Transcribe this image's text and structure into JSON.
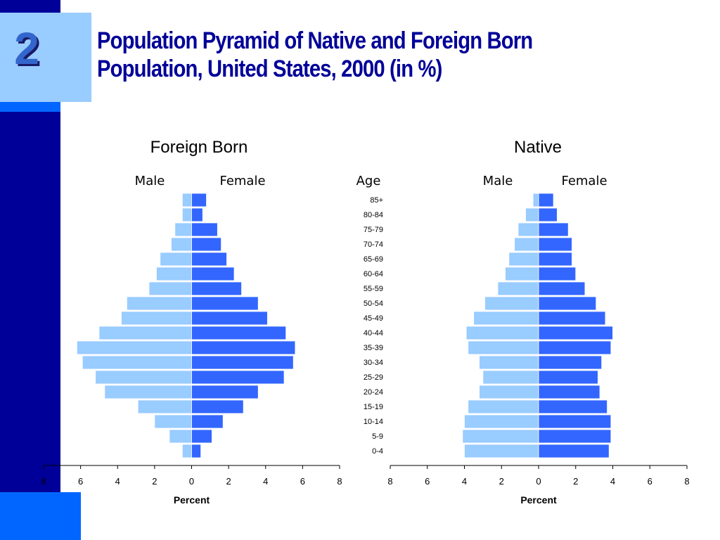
{
  "slide": {
    "number": "2",
    "title_line1": "Population Pyramid of Native and Foreign Born",
    "title_line2": "Population, United States, 2000 (in %)"
  },
  "colors": {
    "sidebar": "#000099",
    "accent": "#0066ff",
    "light_box": "#99ccff",
    "male_bar": "#99ccff",
    "female_bar": "#3366ff",
    "title": "#000099"
  },
  "chart_data": [
    {
      "type": "bar",
      "title": "Foreign Born",
      "xlabel": "Percent",
      "male_label": "Male",
      "female_label": "Female",
      "age_label": "Age",
      "xlim": [
        -8,
        8
      ],
      "xticks": [
        "8",
        "6",
        "4",
        "2",
        "0",
        "2",
        "4",
        "6",
        "8"
      ],
      "categories": [
        "85+",
        "80-84",
        "75-79",
        "70-74",
        "65-69",
        "60-64",
        "55-59",
        "50-54",
        "45-49",
        "40-44",
        "35-39",
        "30-34",
        "25-29",
        "20-24",
        "15-19",
        "10-14",
        "5-9",
        "0-4"
      ],
      "series": [
        {
          "name": "Male",
          "values": [
            0.5,
            0.5,
            0.9,
            1.1,
            1.7,
            1.9,
            2.3,
            3.5,
            3.8,
            5.0,
            6.2,
            5.9,
            5.2,
            4.7,
            2.9,
            2.0,
            1.2,
            0.5
          ]
        },
        {
          "name": "Female",
          "values": [
            0.8,
            0.6,
            1.4,
            1.6,
            1.9,
            2.3,
            2.7,
            3.6,
            4.1,
            5.1,
            5.6,
            5.5,
            5.0,
            3.6,
            2.8,
            1.7,
            1.1,
            0.5
          ]
        }
      ]
    },
    {
      "type": "bar",
      "title": "Native",
      "xlabel": "Percent",
      "male_label": "Male",
      "female_label": "Female",
      "xlim": [
        -8,
        8
      ],
      "xticks": [
        "8",
        "6",
        "4",
        "2",
        "0",
        "2",
        "4",
        "6",
        "8"
      ],
      "categories": [
        "85+",
        "80-84",
        "75-79",
        "70-74",
        "65-69",
        "60-64",
        "55-59",
        "50-54",
        "45-49",
        "40-44",
        "35-39",
        "30-34",
        "25-29",
        "20-24",
        "15-19",
        "10-14",
        "5-9",
        "0-4"
      ],
      "series": [
        {
          "name": "Male",
          "values": [
            0.3,
            0.7,
            1.1,
            1.3,
            1.6,
            1.8,
            2.2,
            2.9,
            3.5,
            3.9,
            3.8,
            3.2,
            3.0,
            3.2,
            3.8,
            4.0,
            4.1,
            4.0
          ]
        },
        {
          "name": "Female",
          "values": [
            0.8,
            1.0,
            1.6,
            1.8,
            1.8,
            2.0,
            2.5,
            3.1,
            3.6,
            4.0,
            3.9,
            3.4,
            3.2,
            3.3,
            3.7,
            3.9,
            3.9,
            3.8
          ]
        }
      ]
    }
  ]
}
